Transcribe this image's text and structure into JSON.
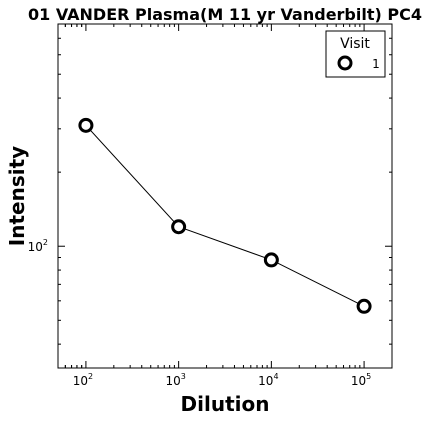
{
  "chart_data": {
    "type": "line",
    "title": "01 VANDER Plasma(M 11 yr Vanderbilt) PC4",
    "xlabel": "Dilution",
    "ylabel": "Intensity",
    "x_scale": "log",
    "y_scale": "log",
    "xlim": [
      50,
      200000
    ],
    "ylim": [
      32,
      800
    ],
    "x_ticks": [
      {
        "value": 100,
        "base": "10",
        "exp": "2"
      },
      {
        "value": 1000,
        "base": "10",
        "exp": "3"
      },
      {
        "value": 10000,
        "base": "10",
        "exp": "4"
      },
      {
        "value": 100000,
        "base": "10",
        "exp": "5"
      }
    ],
    "y_ticks": [
      {
        "value": 100,
        "base": "10",
        "exp": "2"
      }
    ],
    "grid": false,
    "legend": {
      "title": "Visit",
      "placement": "top-right"
    },
    "series": [
      {
        "name": "1",
        "x": [
          100,
          1000,
          10000,
          100000
        ],
        "y": [
          310,
          120,
          88,
          57
        ],
        "color": "#000000",
        "marker": "open-circle"
      }
    ]
  }
}
